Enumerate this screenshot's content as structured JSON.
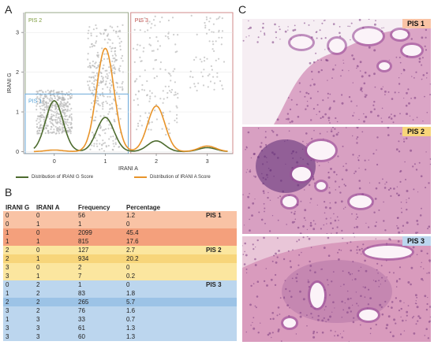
{
  "panels": {
    "a": "A",
    "b": "B",
    "c": "C"
  },
  "chart_data": {
    "type": "line",
    "xlabel": "IRANI A",
    "ylabel": "IRANI G",
    "xticks": [
      "0",
      "1",
      "2",
      "3"
    ],
    "yticks": [
      "0",
      "1",
      "2",
      "3"
    ],
    "xlim": [
      -0.6,
      3.5
    ],
    "ylim": [
      -0.05,
      3.5
    ],
    "region_labels": [
      {
        "label": "PIS 2",
        "color": "#7a9a3a"
      },
      {
        "label": "PIS 3",
        "color": "#c0504d"
      },
      {
        "label": "PIS 1",
        "color": "#4f9fd6"
      }
    ],
    "series": [
      {
        "name": "Distribution of IRANI G Score",
        "color": "#4d6b2e",
        "peaks": [
          {
            "x": 0,
            "y": 1.28
          },
          {
            "x": 1,
            "y": 0.86
          },
          {
            "x": 2,
            "y": 0.27
          },
          {
            "x": 3,
            "y": 0.1
          }
        ]
      },
      {
        "name": "Distribution of IRANI A Score",
        "color": "#e8942a",
        "peaks": [
          {
            "x": 0,
            "y": 0.04
          },
          {
            "x": 1,
            "y": 2.6
          },
          {
            "x": 2,
            "y": 1.15
          },
          {
            "x": 3,
            "y": 0.14
          }
        ]
      }
    ]
  },
  "table": {
    "headers": [
      "IRANI G",
      "IRANI A",
      "Frequency",
      "Percentage",
      ""
    ],
    "rows": [
      {
        "g": "0",
        "a": "0",
        "freq": "56",
        "pct": "1.2",
        "grp": "PIS 1",
        "bg": "#f9c3a5"
      },
      {
        "g": "0",
        "a": "1",
        "freq": "1",
        "pct": "0",
        "grp": "",
        "bg": "#f9c3a5"
      },
      {
        "g": "1",
        "a": "0",
        "freq": "2099",
        "pct": "45.4",
        "grp": "",
        "bg": "#f4a07c"
      },
      {
        "g": "1",
        "a": "1",
        "freq": "815",
        "pct": "17.6",
        "grp": "",
        "bg": "#f4a07c"
      },
      {
        "g": "2",
        "a": "0",
        "freq": "127",
        "pct": "2.7",
        "grp": "PIS 2",
        "bg": "#fbe69f"
      },
      {
        "g": "2",
        "a": "1",
        "freq": "934",
        "pct": "20.2",
        "grp": "",
        "bg": "#f7d57a"
      },
      {
        "g": "3",
        "a": "0",
        "freq": "2",
        "pct": "0",
        "grp": "",
        "bg": "#fbe69f"
      },
      {
        "g": "3",
        "a": "1",
        "freq": "7",
        "pct": "0.2",
        "grp": "",
        "bg": "#fbe69f"
      },
      {
        "g": "0",
        "a": "2",
        "freq": "1",
        "pct": "0",
        "grp": "PIS 3",
        "bg": "#bcd6ee"
      },
      {
        "g": "1",
        "a": "2",
        "freq": "83",
        "pct": "1.8",
        "grp": "",
        "bg": "#bcd6ee"
      },
      {
        "g": "2",
        "a": "2",
        "freq": "265",
        "pct": "5.7",
        "grp": "",
        "bg": "#9cc3e6"
      },
      {
        "g": "3",
        "a": "2",
        "freq": "76",
        "pct": "1.6",
        "grp": "",
        "bg": "#bcd6ee"
      },
      {
        "g": "1",
        "a": "3",
        "freq": "33",
        "pct": "0.7",
        "grp": "",
        "bg": "#bcd6ee"
      },
      {
        "g": "3",
        "a": "3",
        "freq": "61",
        "pct": "1.3",
        "grp": "",
        "bg": "#bcd6ee"
      },
      {
        "g": "3",
        "a": "3",
        "freq": "60",
        "pct": "1.3",
        "grp": "",
        "bg": "#bcd6ee"
      }
    ]
  },
  "histology": [
    {
      "tag": "PIS 1",
      "tag_color": "#f9c3a5"
    },
    {
      "tag": "PIS 2",
      "tag_color": "#f7d57a"
    },
    {
      "tag": "PIS 3",
      "tag_color": "#bcd6ee"
    }
  ]
}
